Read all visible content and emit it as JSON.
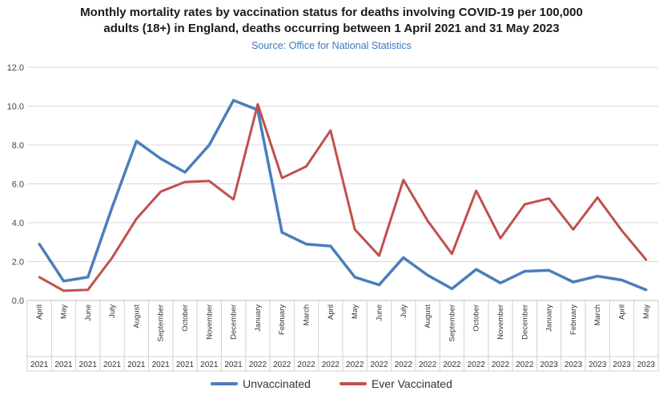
{
  "chart_data": {
    "type": "line",
    "title_line1": "Monthly mortality rates by vaccination status for deaths involving COVID-19 per 100,000",
    "title_line2": "adults (18+) in England, deaths occurring between 1 April 2021 and 31 May  2023",
    "subtitle": "Source: Office for National Statistics",
    "ylim": [
      0,
      12
    ],
    "yticks": [
      "0.0",
      "2.0",
      "4.0",
      "6.0",
      "8.0",
      "10.0",
      "12.0"
    ],
    "grid": true,
    "legend_position": "bottom",
    "categories": [
      "April",
      "May",
      "June",
      "July",
      "August",
      "September",
      "October",
      "November",
      "December",
      "January",
      "February",
      "March",
      "April",
      "May",
      "June",
      "July",
      "August",
      "September",
      "October",
      "November",
      "December",
      "January",
      "February",
      "March",
      "April",
      "May"
    ],
    "years": [
      "2021",
      "2021",
      "2021",
      "2021",
      "2021",
      "2021",
      "2021",
      "2021",
      "2021",
      "2022",
      "2022",
      "2022",
      "2022",
      "2022",
      "2022",
      "2022",
      "2022",
      "2022",
      "2022",
      "2022",
      "2022",
      "2023",
      "2023",
      "2023",
      "2023",
      "2023"
    ],
    "series": [
      {
        "name": "Unvaccinated",
        "color": "#4a7ebb",
        "values": [
          2.9,
          1.0,
          1.2,
          4.8,
          8.2,
          7.3,
          6.6,
          8.0,
          10.3,
          9.8,
          3.5,
          2.9,
          2.8,
          1.2,
          0.8,
          2.2,
          1.3,
          0.6,
          1.6,
          0.9,
          1.5,
          1.55,
          0.95,
          1.25,
          1.05,
          0.55
        ]
      },
      {
        "name": "Ever Vaccinated",
        "color": "#c0504d",
        "values": [
          1.2,
          0.5,
          0.55,
          2.2,
          4.2,
          5.6,
          6.1,
          6.15,
          5.2,
          10.1,
          6.3,
          6.9,
          8.75,
          3.65,
          2.3,
          6.2,
          4.1,
          2.4,
          5.65,
          3.2,
          4.95,
          5.25,
          3.65,
          5.3,
          3.6,
          2.1
        ]
      }
    ]
  }
}
